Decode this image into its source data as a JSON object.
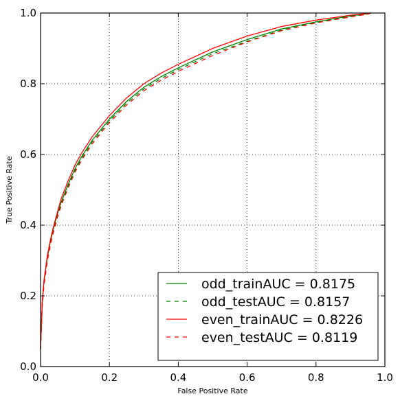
{
  "chart_data": {
    "type": "line",
    "title": "",
    "xlabel": "False Positive Rate",
    "ylabel": "True Positive Rate",
    "xlim": [
      0.0,
      1.0
    ],
    "ylim": [
      0.0,
      1.0
    ],
    "xticks": [
      0.0,
      0.2,
      0.4,
      0.6,
      0.8,
      1.0
    ],
    "yticks": [
      0.0,
      0.2,
      0.4,
      0.6,
      0.8,
      1.0
    ],
    "xtick_labels": [
      "0.0",
      "0.2",
      "0.4",
      "0.6",
      "0.8",
      "1.0"
    ],
    "ytick_labels": [
      "0.0",
      "0.2",
      "0.4",
      "0.6",
      "0.8",
      "1.0"
    ],
    "grid": true,
    "legend_position": "lower-right",
    "series": [
      {
        "name": "odd_trainAUC = 0.8175",
        "color": "#008000",
        "style": "solid",
        "x": [
          0,
          0.005,
          0.01,
          0.02,
          0.03,
          0.04,
          0.05,
          0.06,
          0.08,
          0.1,
          0.12,
          0.15,
          0.2,
          0.25,
          0.3,
          0.35,
          0.4,
          0.5,
          0.6,
          0.7,
          0.8,
          0.9,
          0.95,
          0.96
        ],
        "y": [
          0.05,
          0.18,
          0.24,
          0.31,
          0.36,
          0.4,
          0.435,
          0.465,
          0.515,
          0.56,
          0.595,
          0.64,
          0.7,
          0.75,
          0.79,
          0.82,
          0.845,
          0.89,
          0.925,
          0.955,
          0.975,
          0.992,
          0.998,
          1.0
        ]
      },
      {
        "name": "odd_testAUC = 0.8157",
        "color": "#008000",
        "style": "dashed",
        "x": [
          0,
          0.005,
          0.01,
          0.02,
          0.03,
          0.04,
          0.05,
          0.06,
          0.08,
          0.1,
          0.12,
          0.15,
          0.2,
          0.25,
          0.3,
          0.35,
          0.4,
          0.5,
          0.6,
          0.7,
          0.8,
          0.9,
          0.95,
          0.96
        ],
        "y": [
          0.05,
          0.175,
          0.235,
          0.305,
          0.355,
          0.395,
          0.43,
          0.46,
          0.51,
          0.555,
          0.59,
          0.635,
          0.695,
          0.745,
          0.785,
          0.815,
          0.84,
          0.885,
          0.92,
          0.952,
          0.973,
          0.99,
          0.997,
          1.0
        ]
      },
      {
        "name": "even_trainAUC = 0.8226",
        "color": "#ff0000",
        "style": "solid",
        "x": [
          0,
          0.005,
          0.01,
          0.02,
          0.03,
          0.04,
          0.05,
          0.06,
          0.08,
          0.1,
          0.12,
          0.15,
          0.2,
          0.25,
          0.3,
          0.35,
          0.4,
          0.5,
          0.6,
          0.7,
          0.8,
          0.9,
          0.95,
          0.96
        ],
        "y": [
          0.05,
          0.185,
          0.245,
          0.315,
          0.365,
          0.405,
          0.44,
          0.475,
          0.525,
          0.57,
          0.605,
          0.65,
          0.71,
          0.76,
          0.8,
          0.83,
          0.855,
          0.9,
          0.935,
          0.962,
          0.98,
          0.994,
          0.999,
          1.0
        ]
      },
      {
        "name": "even_testAUC = 0.8119",
        "color": "#ff0000",
        "style": "dashed",
        "x": [
          0,
          0.005,
          0.01,
          0.02,
          0.03,
          0.04,
          0.05,
          0.06,
          0.08,
          0.1,
          0.12,
          0.15,
          0.2,
          0.25,
          0.3,
          0.35,
          0.4,
          0.5,
          0.6,
          0.7,
          0.8,
          0.9,
          0.95,
          0.96
        ],
        "y": [
          0.05,
          0.172,
          0.23,
          0.3,
          0.35,
          0.39,
          0.425,
          0.455,
          0.505,
          0.55,
          0.585,
          0.63,
          0.69,
          0.74,
          0.78,
          0.81,
          0.835,
          0.88,
          0.918,
          0.95,
          0.972,
          0.989,
          0.997,
          1.0
        ]
      }
    ]
  }
}
